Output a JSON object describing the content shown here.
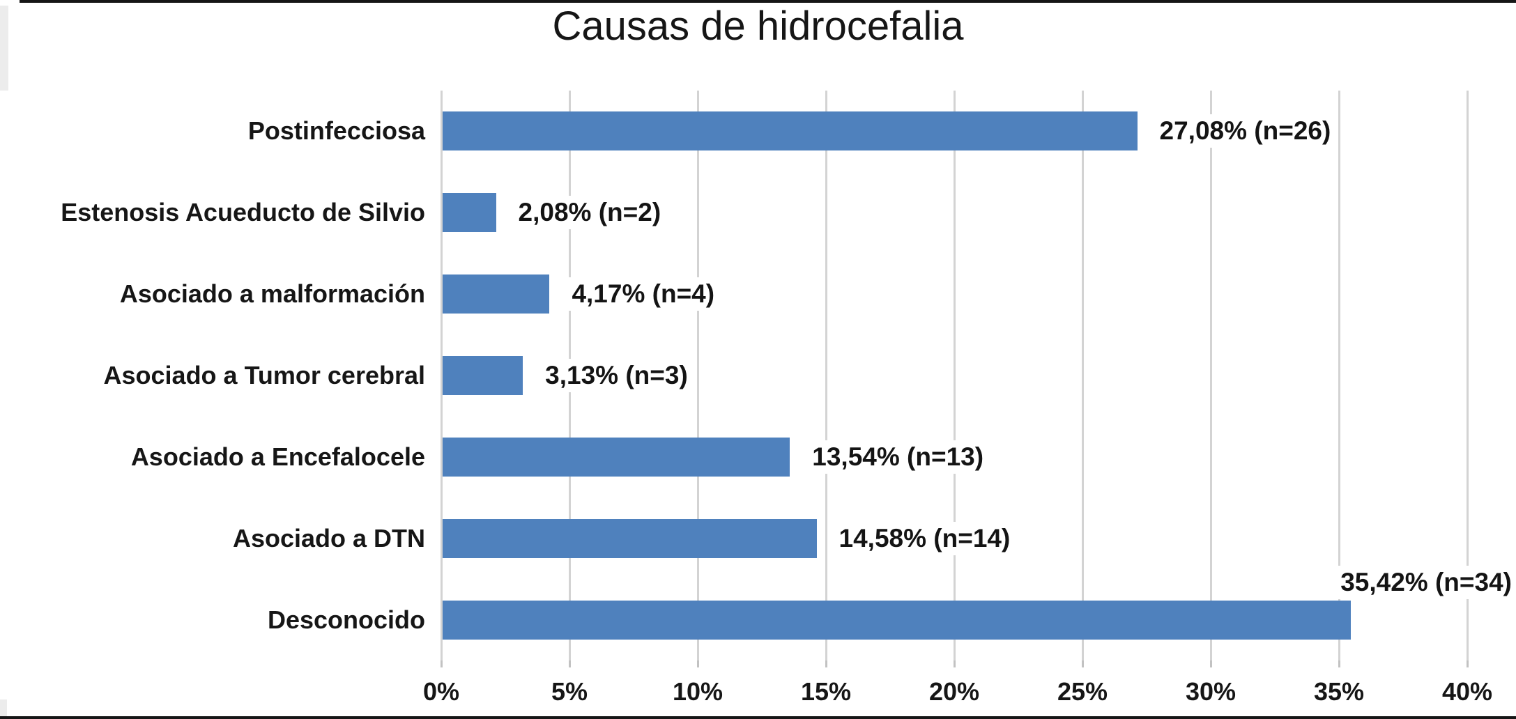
{
  "colors": {
    "bar": "#4f81bd",
    "gridline": "#d3d3d3",
    "axis_tick": "#c2c2c2",
    "text": "#161616",
    "background": "#ffffff",
    "scan_edge": "#161616",
    "scan_strip": "#ececec"
  },
  "chart_data": {
    "type": "bar",
    "orientation": "horizontal",
    "title": "Causas de hidrocefalia",
    "categories": [
      "Postinfecciosa",
      "Estenosis Acueducto de Silvio",
      "Asociado a malformación",
      "Asociado a Tumor cerebral",
      "Asociado a Encefalocele",
      "Asociado a DTN",
      "Desconocido"
    ],
    "values": [
      27.08,
      2.08,
      4.17,
      3.13,
      13.54,
      14.58,
      35.42
    ],
    "counts": [
      26,
      2,
      4,
      3,
      13,
      14,
      34
    ],
    "data_labels": [
      "27,08% (n=26)",
      "2,08% (n=2)",
      "4,17% (n=4)",
      "3,13% (n=3)",
      "13,54% (n=13)",
      "14,58% (n=14)",
      "35,42% (n=34)"
    ],
    "label_positions": [
      "right",
      "right",
      "right",
      "right",
      "right",
      "right",
      "above-end"
    ],
    "x_ticks": [
      "0%",
      "5%",
      "10%",
      "15%",
      "20%",
      "25%",
      "30%",
      "35%",
      "40%"
    ],
    "x_tick_values": [
      0,
      5,
      10,
      15,
      20,
      25,
      30,
      35,
      40
    ],
    "xlim": [
      0,
      40
    ],
    "xlabel": "",
    "ylabel": "",
    "grid": true,
    "legend": false
  }
}
